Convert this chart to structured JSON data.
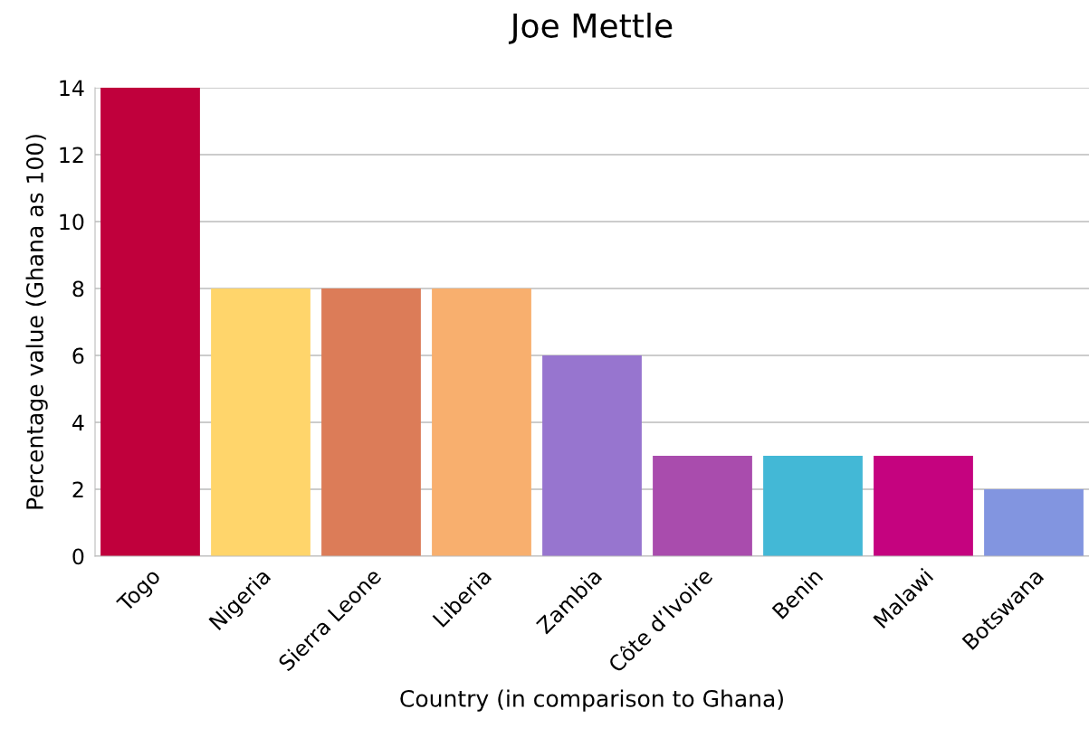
{
  "chart_data": {
    "type": "bar",
    "title": "Joe Mettle",
    "xlabel": "Country (in comparison to Ghana)",
    "ylabel": "Percentage value (Ghana as 100)",
    "categories": [
      "Togo",
      "Nigeria",
      "Sierra Leone",
      "Liberia",
      "Zambia",
      "Côte d’Ivoire",
      "Benin",
      "Malawi",
      "Botswana"
    ],
    "values": [
      14,
      8,
      8,
      8,
      6,
      3,
      3,
      3,
      2
    ],
    "colors": [
      "#c0003c",
      "#ffd56b",
      "#dc7c58",
      "#f8af6e",
      "#9775cf",
      "#a94cad",
      "#43b8d6",
      "#c5037f",
      "#8295e0"
    ],
    "ylim": [
      0,
      14
    ],
    "yticks": [
      0,
      2,
      4,
      6,
      8,
      10,
      12,
      14
    ],
    "grid": "y",
    "legend": false
  }
}
